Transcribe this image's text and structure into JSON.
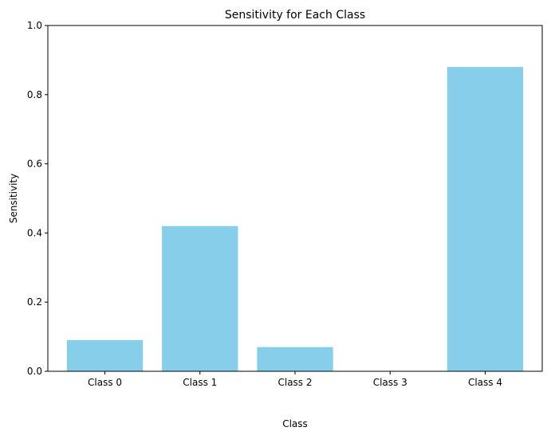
{
  "chart_data": {
    "type": "bar",
    "title": "Sensitivity for Each Class",
    "xlabel": "Class",
    "ylabel": "Sensitivity",
    "categories": [
      "Class 0",
      "Class 1",
      "Class 2",
      "Class 3",
      "Class 4"
    ],
    "values": [
      0.09,
      0.42,
      0.07,
      0.0,
      0.88
    ],
    "ylim": [
      0,
      1
    ],
    "yticks": [
      "0.0",
      "0.2",
      "0.4",
      "0.6",
      "0.8",
      "1.0"
    ],
    "bar_color": "#87CEEB",
    "grid": false,
    "legend": "none"
  }
}
